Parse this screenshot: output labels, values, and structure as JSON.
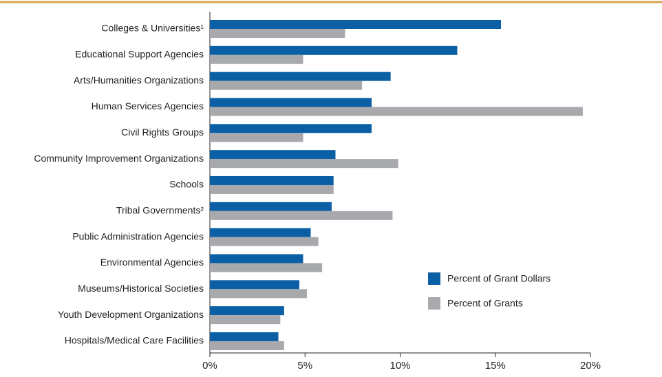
{
  "chart_data": {
    "type": "hbar",
    "categories": [
      "Colleges & Universities¹",
      "Educational Support Agencies",
      "Arts/Humanities Organizations",
      "Human Services Agencies",
      "Civil Rights Groups",
      "Community Improvement Organizations",
      "Schools",
      "Tribal Governments²",
      "Public Administration Agencies",
      "Environmental Agencies",
      "Museums/Historical Societies",
      "Youth Development Organizations",
      "Hospitals/Medical Care Facilities"
    ],
    "series": [
      {
        "name": "Percent of Grant Dollars",
        "color": "#0b5fa5",
        "values": [
          15.3,
          13.0,
          9.5,
          8.5,
          8.5,
          6.6,
          6.5,
          6.4,
          5.3,
          4.9,
          4.7,
          3.9,
          3.6
        ]
      },
      {
        "name": "Percent of Grants",
        "color": "#a7a9ac",
        "values": [
          7.1,
          4.9,
          8.0,
          19.6,
          4.9,
          9.9,
          6.5,
          9.6,
          5.7,
          5.9,
          5.1,
          3.7,
          3.9
        ]
      }
    ],
    "xlim": [
      0,
      20
    ],
    "xticks": [
      {
        "value": 0,
        "label": "0%"
      },
      {
        "value": 5,
        "label": "5%"
      },
      {
        "value": 10,
        "label": "10%"
      },
      {
        "value": 15,
        "label": "15%"
      },
      {
        "value": 20,
        "label": "20%"
      }
    ],
    "legend": "lower right"
  }
}
